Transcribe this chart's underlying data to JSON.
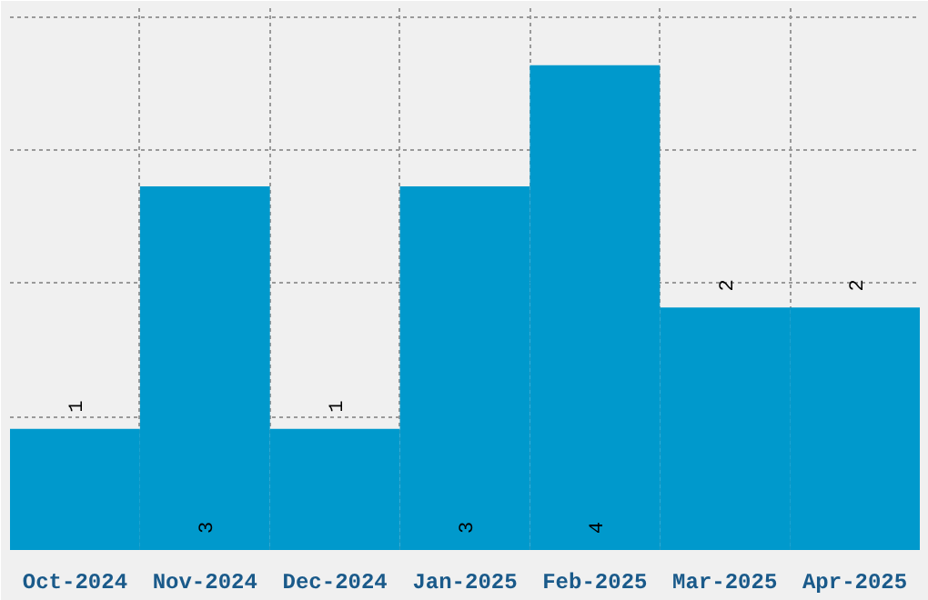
{
  "chart_data": {
    "type": "bar",
    "categories": [
      "Oct-2024",
      "Nov-2024",
      "Dec-2024",
      "Jan-2025",
      "Feb-2025",
      "Mar-2025",
      "Apr-2025"
    ],
    "values": [
      1,
      3,
      1,
      3,
      4,
      2,
      2
    ],
    "color": "#0099cc",
    "data_labels": true,
    "ylim": [
      0,
      4.47
    ],
    "yticks": [
      {
        "value": 1.1,
        "label": null
      },
      {
        "value": 2.2,
        "label": null
      },
      {
        "value": 3.3,
        "label": null
      },
      {
        "value": 4.4,
        "label": null
      }
    ],
    "grid": true,
    "tick_labels": "x"
  }
}
